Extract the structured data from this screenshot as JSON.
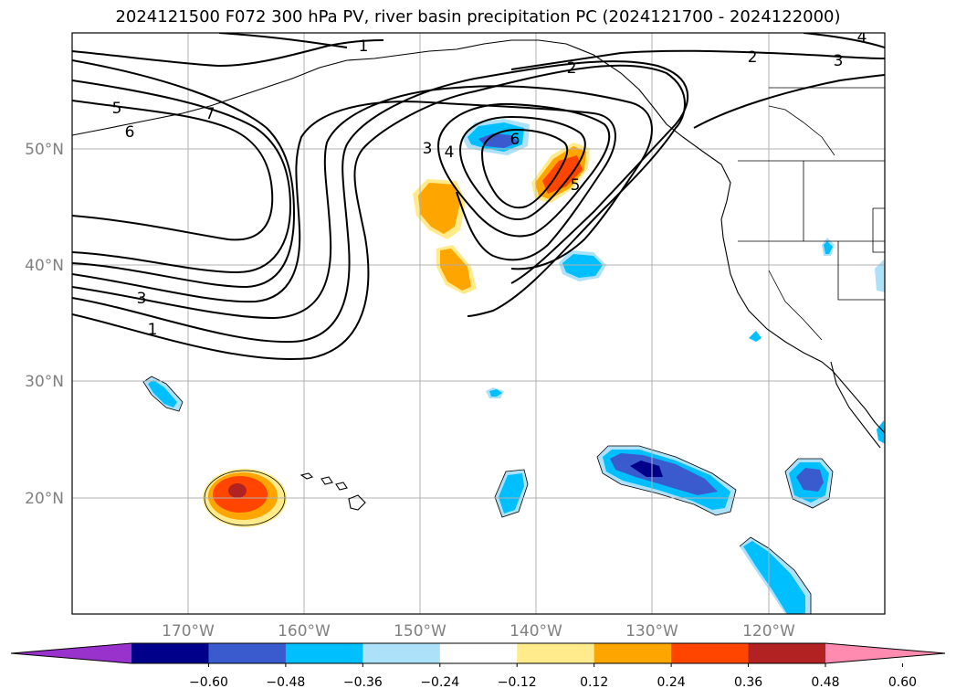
{
  "title": "2024121500 F072 300 hPa PV, river basin precipitation PC (2024121700 - 2024122000)",
  "lat_labels": [
    "50°N",
    "40°N",
    "30°N",
    "20°N"
  ],
  "lon_labels": [
    "170°W",
    "160°W",
    "150°W",
    "140°W",
    "130°W",
    "120°W"
  ],
  "pv_contour_labels": [
    "1",
    "2",
    "3",
    "4",
    "5",
    "6",
    "7"
  ],
  "colorbar": {
    "ticks": [
      "−0.60",
      "−0.48",
      "−0.36",
      "−0.24",
      "−0.12",
      "0.12",
      "0.24",
      "0.36",
      "0.48",
      "0.60"
    ],
    "colors": {
      "under": "#9932CC",
      "bins": [
        "#00008B",
        "#3A5BCD",
        "#00BFFF",
        "#ADE1F9",
        "#FFFFFF",
        "#FFEB8C",
        "#FFA500",
        "#FF4500",
        "#B22222"
      ],
      "over": "#FF8CB0"
    }
  },
  "colors": {
    "gridline": "#b0b0b0",
    "contour": "#000000",
    "coast": "#000000"
  }
}
